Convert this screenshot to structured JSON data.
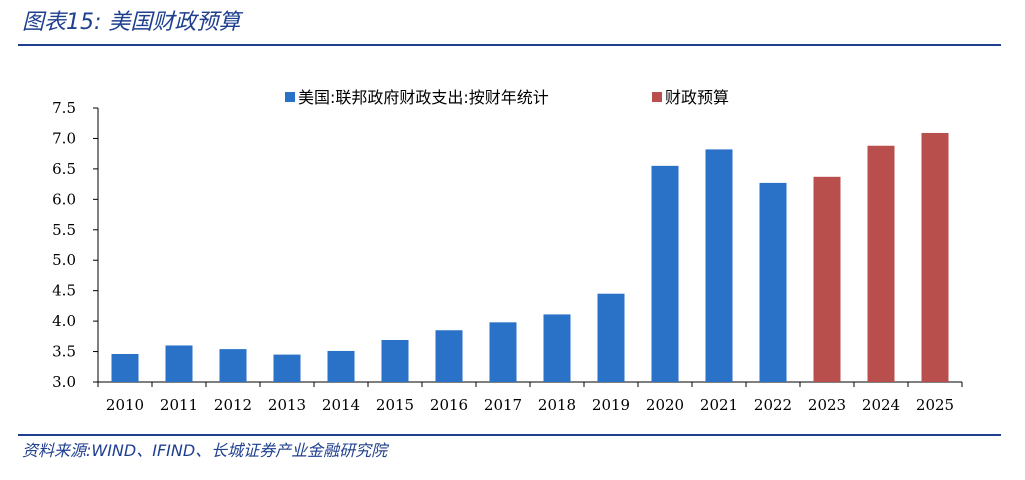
{
  "figure": {
    "title": "图表15:  美国财政预算",
    "source": "资料来源:WIND、IFIND、长城证券产业金融研究院"
  },
  "colors": {
    "actual": "#2a72c7",
    "budget": "#b94f4c",
    "brand": "#1f3f8f"
  },
  "chart_data": {
    "type": "bar",
    "categories": [
      "2010",
      "2011",
      "2012",
      "2013",
      "2014",
      "2015",
      "2016",
      "2017",
      "2018",
      "2019",
      "2020",
      "2021",
      "2022",
      "2023",
      "2024",
      "2025"
    ],
    "series": [
      {
        "name": "美国:联邦政府财政支出:按财年统计",
        "values": [
          3.46,
          3.6,
          3.54,
          3.45,
          3.51,
          3.69,
          3.85,
          3.98,
          4.11,
          4.45,
          6.55,
          6.82,
          6.27,
          null,
          null,
          null
        ]
      },
      {
        "name": "财政预算",
        "values": [
          null,
          null,
          null,
          null,
          null,
          null,
          null,
          null,
          null,
          null,
          null,
          null,
          null,
          6.37,
          6.88,
          7.09
        ]
      }
    ],
    "ylim": [
      3.0,
      7.5
    ],
    "yticks": [
      "3.0",
      "3.5",
      "4.0",
      "4.5",
      "5.0",
      "5.5",
      "6.0",
      "6.5",
      "7.0",
      "7.5"
    ],
    "legend": "top",
    "grid": false
  }
}
